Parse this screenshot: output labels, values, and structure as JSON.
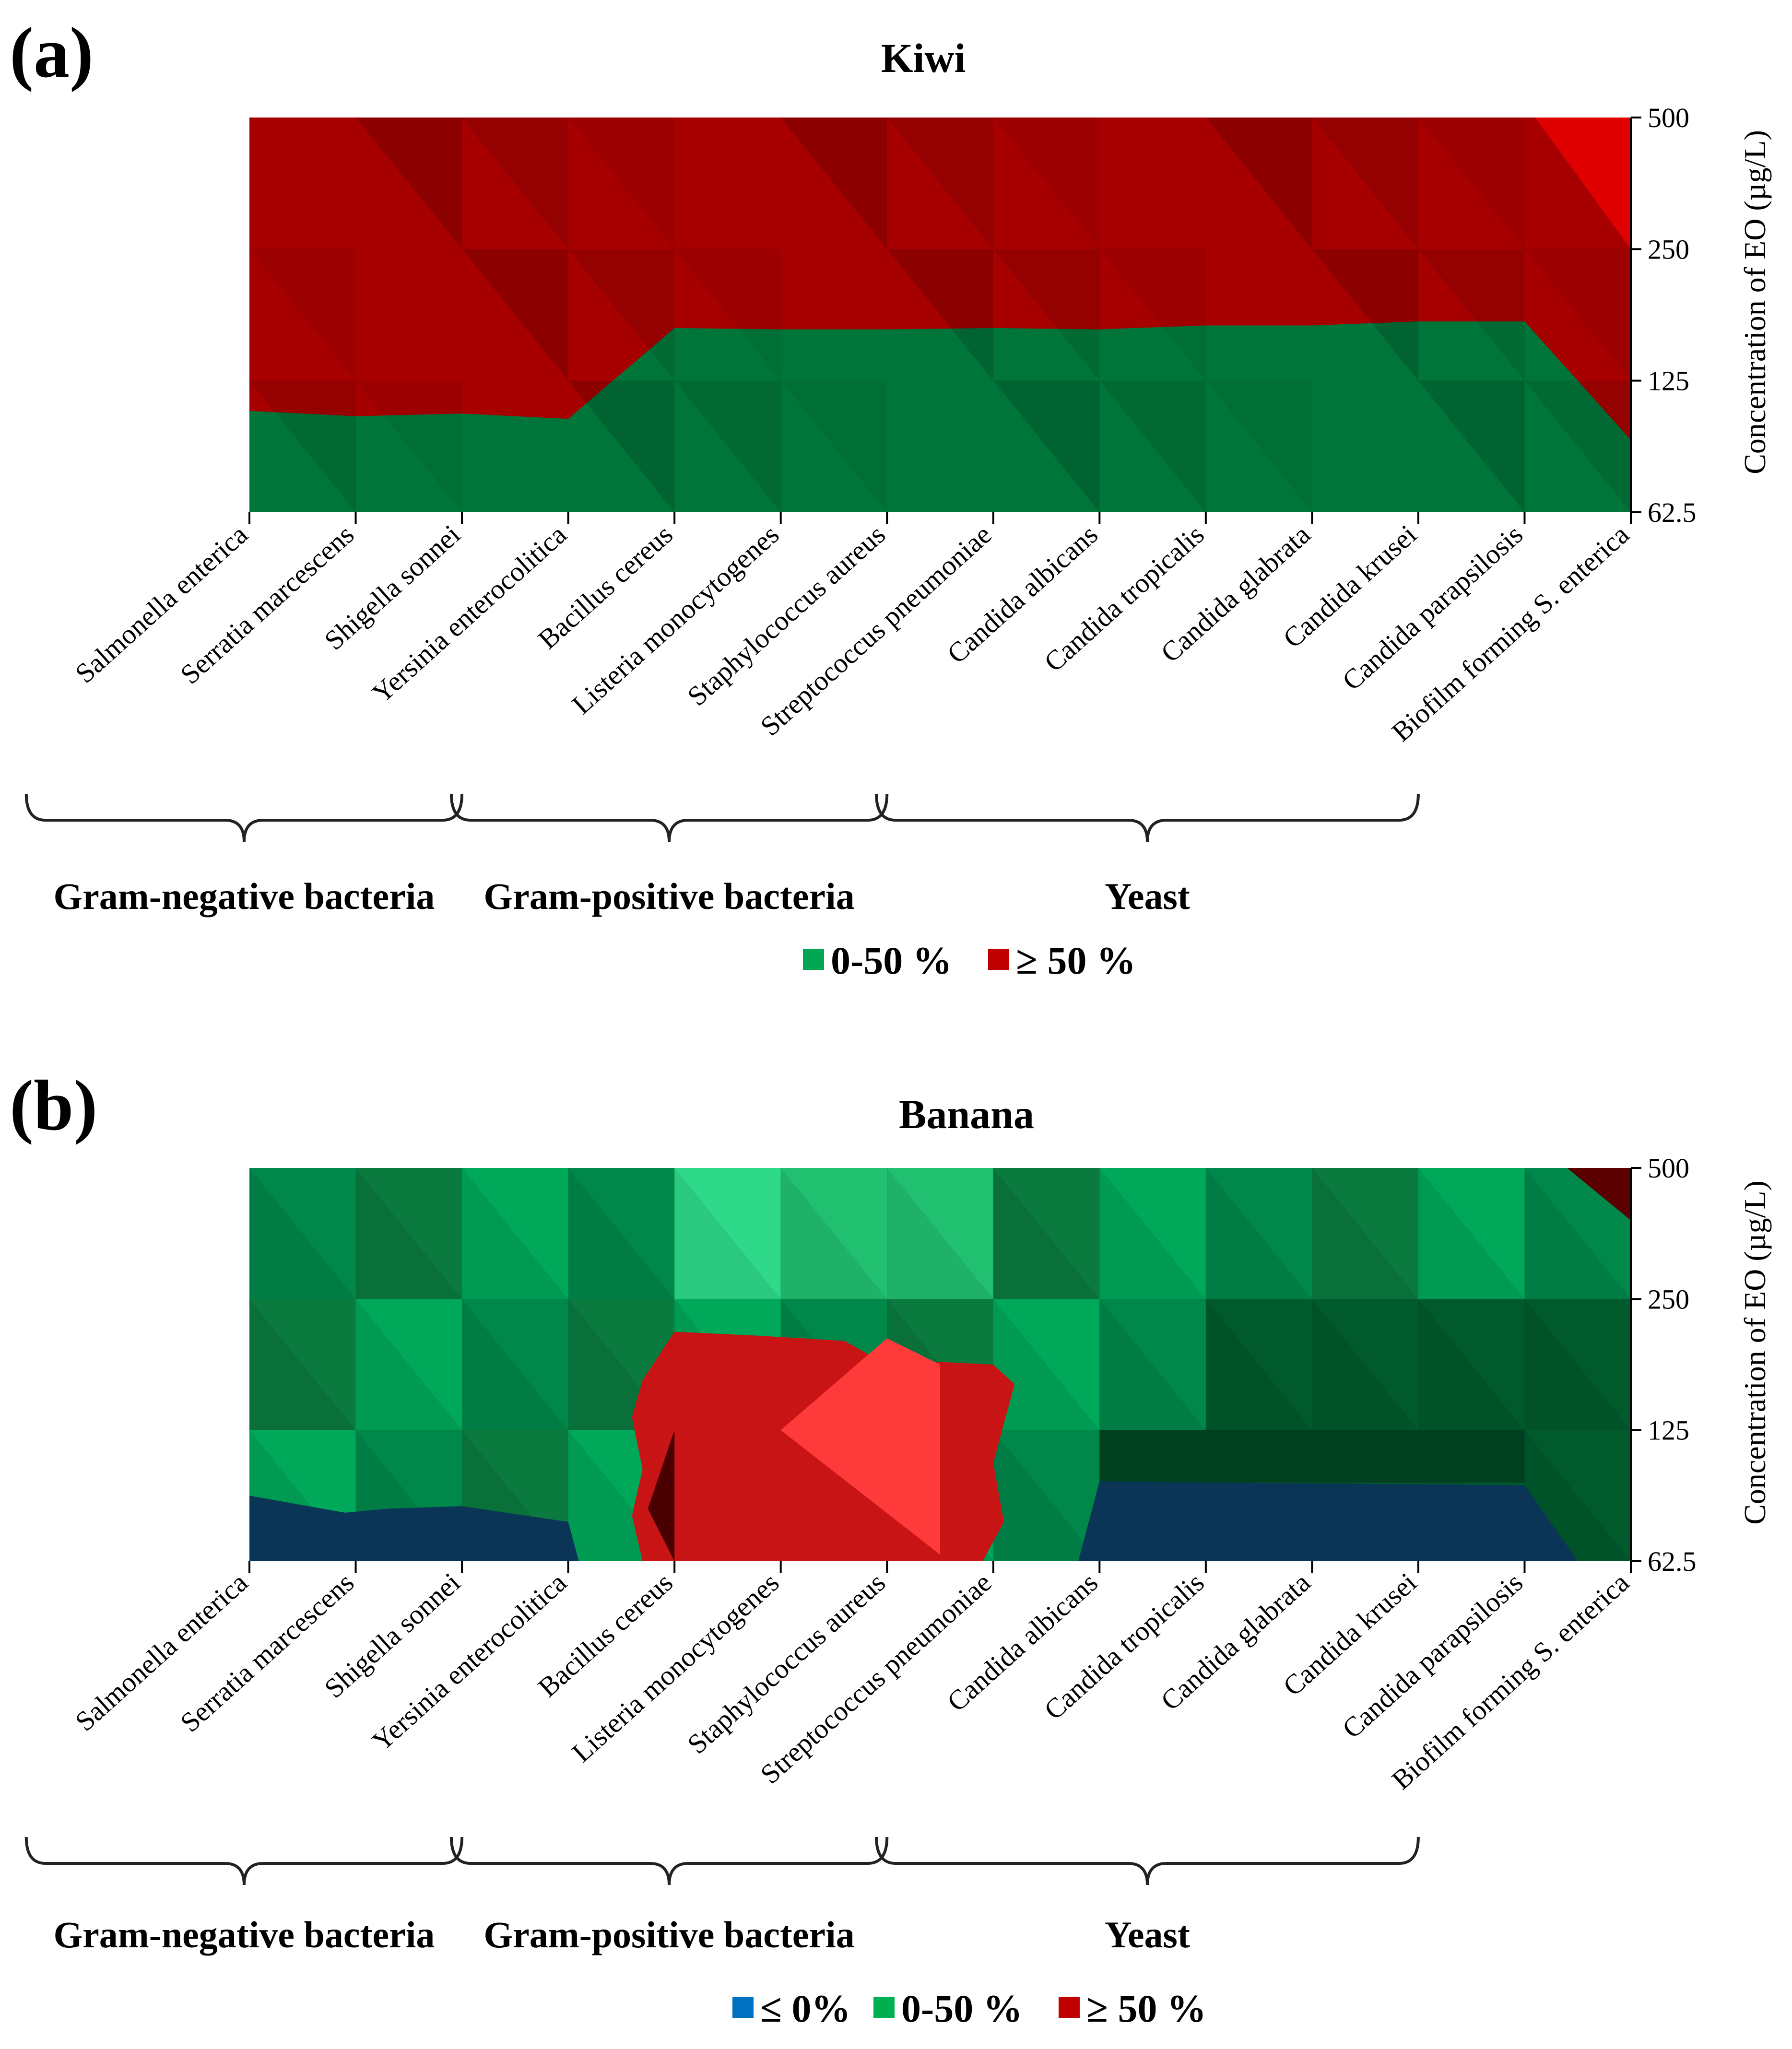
{
  "chart_data": [
    {
      "type": "heatmap",
      "panel_label": "(a)",
      "title": "Kiwi",
      "categories": [
        "Salmonella enterica",
        "Serratia marcescens",
        "Shigella sonnei",
        "Yersinia enterocolitica",
        "Bacillus cereus",
        "Listeria monocytogenes",
        "Staphylococcus aureus",
        "Streptococcus pneumoniae",
        "Candida albicans",
        "Candida tropicalis",
        "Candida glabrata",
        "Candida krusei",
        "Candida parapsilosis",
        "Biofilm forming S. enterica"
      ],
      "y_ticks": [
        "500",
        "250",
        "125",
        "62.5"
      ],
      "ylabel": "Concentration of EO (µg/L)",
      "groups": [
        {
          "label": "Gram-negative bacteria",
          "from": 0,
          "to": 3
        },
        {
          "label": "Gram-positive bacteria",
          "from": 4,
          "to": 7
        },
        {
          "label": "Yeast",
          "from": 8,
          "to": 12
        }
      ],
      "legend": [
        {
          "label": "0-50 %",
          "color": "#00a651"
        },
        {
          "label": "≥ 50 %",
          "color": "#c00000"
        }
      ],
      "boundaries": [
        {
          "name": "50%",
          "values": [
            0.77,
            0.73,
            0.75,
            0.71,
            1.4,
            1.39,
            1.39,
            1.4,
            1.39,
            1.42,
            1.42,
            1.45,
            1.45,
            0.55
          ]
        }
      ],
      "fill_colors": [
        "#00753a",
        "#a60000"
      ]
    },
    {
      "type": "heatmap",
      "panel_label": "(b)",
      "title": "Banana",
      "categories": [
        "Salmonella enterica",
        "Serratia marcescens",
        "Shigella sonnei",
        "Yersinia enterocolitica",
        "Bacillus cereus",
        "Listeria monocytogenes",
        "Staphylococcus aureus",
        "Streptococcus pneumoniae",
        "Candida albicans",
        "Candida tropicalis",
        "Candida glabrata",
        "Candida krusei",
        "Candida parapsilosis",
        "Biofilm forming S. enterica"
      ],
      "y_ticks": [
        "500",
        "250",
        "125",
        "62.5"
      ],
      "ylabel": "Concentration of EO (µg/L)",
      "groups": [
        {
          "label": "Gram-negative bacteria",
          "from": 0,
          "to": 3
        },
        {
          "label": "Gram-positive bacteria",
          "from": 4,
          "to": 7
        },
        {
          "label": "Yeast",
          "from": 8,
          "to": 12
        }
      ],
      "legend": [
        {
          "label": "≤ 0%",
          "color": "#0070c0"
        },
        {
          "label": "0-50 %",
          "color": "#00b050"
        },
        {
          "label": "≥ 50 %",
          "color": "#c00000"
        }
      ],
      "blobs": [
        {
          "name": "≤ 0%",
          "color": "#0a3556",
          "points": [
            [
              0,
              0.5
            ],
            [
              0.9,
              0.37
            ],
            [
              1.3,
              0.4
            ],
            [
              2,
              0.42
            ],
            [
              3,
              0.3
            ],
            [
              3.1,
              0
            ],
            [
              0,
              0
            ]
          ]
        },
        {
          "name": "≤ 0%",
          "color": "#0a3556",
          "points": [
            [
              7.8,
              0
            ],
            [
              8,
              0.61
            ],
            [
              9,
              0.6
            ],
            [
              12,
              0.58
            ],
            [
              12.5,
              0
            ],
            [
              7.8,
              0
            ]
          ]
        },
        {
          "name": "≥ 50 %",
          "color": "#c81414",
          "points": [
            [
              3.7,
              1.38
            ],
            [
              4,
              1.75
            ],
            [
              4.8,
              1.72
            ],
            [
              5.6,
              1.68
            ],
            [
              6,
              1.5
            ],
            [
              6.5,
              1.52
            ],
            [
              7,
              1.5
            ],
            [
              7.2,
              1.35
            ],
            [
              7,
              0.75
            ],
            [
              7.1,
              0.3
            ],
            [
              6.9,
              0
            ],
            [
              3.7,
              0
            ],
            [
              3.6,
              0.35
            ],
            [
              3.7,
              0.7
            ],
            [
              3.6,
              1.1
            ]
          ]
        }
      ],
      "base_color": "#006633",
      "corner_color": "#5a0000"
    }
  ]
}
